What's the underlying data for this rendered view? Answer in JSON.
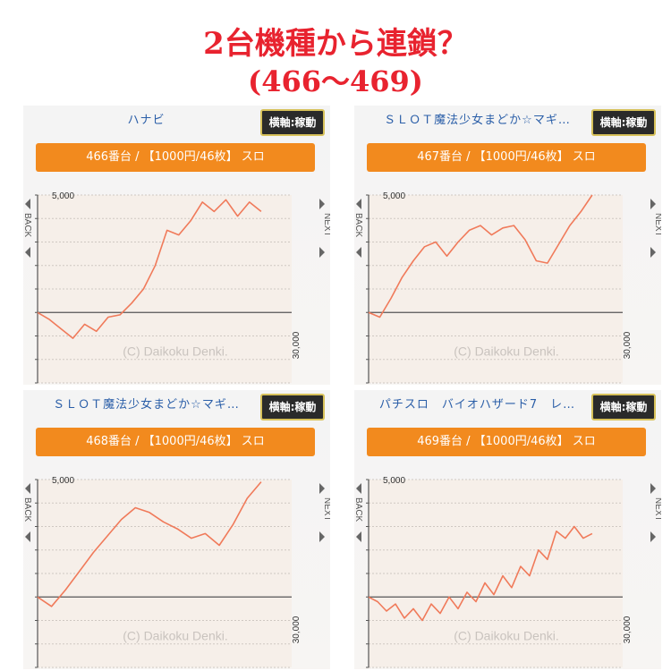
{
  "headline": {
    "line1": "2台機種から連鎖？",
    "line2": "(466〜469)"
  },
  "colors": {
    "accent": "#f28a1e",
    "line": "#f07a5a",
    "title_red": "#e8232f",
    "title_blue": "#2a5ea8"
  },
  "panels": [
    {
      "title": "ハナビ",
      "axis_button": "横軸:稼動",
      "info": "466番台 / 【1000円/46枚】 スロ",
      "y_top_label": "5,000",
      "x_end_label": "30,000",
      "back": "BACK",
      "next": "NEXT",
      "watermark": "(C) Daikoku Denki.",
      "chart_data": {
        "type": "line",
        "xlim": [
          0,
          30000
        ],
        "ylim": [
          -3000,
          5000
        ],
        "grid": true,
        "y": [
          0,
          -300,
          -700,
          -1100,
          -500,
          -800,
          -200,
          -100,
          400,
          1000,
          2000,
          3500,
          3300,
          3900,
          4700,
          4300,
          4800,
          4100,
          4700,
          4300
        ]
      }
    },
    {
      "title": "ＳＬＯＴ魔法少女まどか☆マギ…",
      "axis_button": "横軸:稼動",
      "info": "467番台 / 【1000円/46枚】 スロ",
      "y_top_label": "5,000",
      "x_end_label": "30,000",
      "back": "BACK",
      "next": "NEXT",
      "watermark": "(C) Daikoku Denki.",
      "chart_data": {
        "type": "line",
        "xlim": [
          0,
          30000
        ],
        "ylim": [
          -3000,
          5000
        ],
        "grid": true,
        "y": [
          0,
          -200,
          600,
          1500,
          2200,
          2800,
          3000,
          2400,
          3000,
          3500,
          3700,
          3300,
          3600,
          3700,
          3100,
          2200,
          2100,
          2900,
          3700,
          4300,
          5000
        ]
      }
    },
    {
      "title": "ＳＬＯＴ魔法少女まどか☆マギ…",
      "axis_button": "横軸:稼動",
      "info": "468番台 / 【1000円/46枚】 スロ",
      "y_top_label": "5,000",
      "x_end_label": "30,000",
      "back": "BACK",
      "next": "NEXT",
      "watermark": "(C) Daikoku Denki.",
      "chart_data": {
        "type": "line",
        "xlim": [
          0,
          30000
        ],
        "ylim": [
          -3000,
          5000
        ],
        "grid": true,
        "y": [
          0,
          -400,
          300,
          1100,
          1900,
          2600,
          3300,
          3800,
          3600,
          3200,
          2900,
          2500,
          2700,
          2200,
          3100,
          4200,
          4900
        ]
      }
    },
    {
      "title": "パチスロ　バイオハザード7　レ…",
      "axis_button": "横軸:稼動",
      "info": "469番台 / 【1000円/46枚】 スロ",
      "y_top_label": "5,000",
      "x_end_label": "30,000",
      "back": "BACK",
      "next": "NEXT",
      "watermark": "(C) Daikoku Denki.",
      "chart_data": {
        "type": "line",
        "xlim": [
          0,
          30000
        ],
        "ylim": [
          -3000,
          5000
        ],
        "grid": true,
        "y": [
          0,
          -200,
          -600,
          -300,
          -900,
          -500,
          -1000,
          -300,
          -700,
          0,
          -500,
          200,
          -200,
          600,
          100,
          900,
          400,
          1300,
          900,
          2000,
          1600,
          2800,
          2500,
          3000,
          2500,
          2700
        ]
      }
    }
  ]
}
